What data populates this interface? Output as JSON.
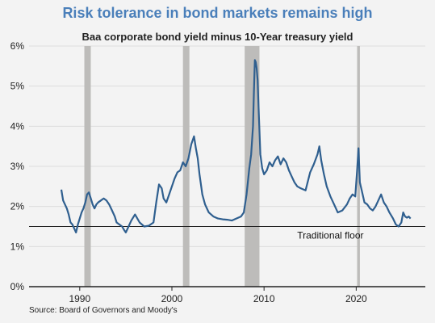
{
  "chart_data": {
    "type": "line",
    "title": "Risk tolerance in bond markets remains high",
    "subtitle": "Baa corporate bond yield minus 10-Year treasury yield",
    "source": "Source: Board of Governors and Moody's",
    "xlim": [
      1984.5,
      2027.5
    ],
    "ylim": [
      0,
      6
    ],
    "x_ticks": [
      1990,
      2000,
      2010,
      2020
    ],
    "x_tick_labels": [
      "1990",
      "2000",
      "2010",
      "2020"
    ],
    "y_ticks": [
      0,
      1,
      2,
      3,
      4,
      5,
      6
    ],
    "y_tick_labels": [
      "0%",
      "1%",
      "2%",
      "3%",
      "4%",
      "5%",
      "6%"
    ],
    "grid": "horizontal",
    "recessions": [
      {
        "start": 1990.5,
        "end": 1991.2
      },
      {
        "start": 2001.2,
        "end": 2001.9
      },
      {
        "start": 2007.9,
        "end": 2009.5
      },
      {
        "start": 2020.1,
        "end": 2020.4
      }
    ],
    "reference_line": {
      "y": 1.5,
      "label": "Traditional floor"
    },
    "colors": {
      "line": "#2f5f8f",
      "recession": "#bdbcba",
      "title": "#4a7fba",
      "reference": "#222222"
    },
    "series": [
      {
        "x": [
          1988.0,
          1988.2,
          1988.4,
          1988.6,
          1988.8,
          1989.0,
          1989.2,
          1989.4,
          1989.6,
          1989.8,
          1990.0,
          1990.2,
          1990.4,
          1990.6,
          1990.8,
          1991.0,
          1991.2,
          1991.4,
          1991.6,
          1991.8,
          1992.0,
          1992.3,
          1992.6,
          1992.9,
          1993.2,
          1993.5,
          1993.8,
          1994.0,
          1994.3,
          1994.6,
          1994.8,
          1995.0,
          1995.3,
          1995.6,
          1996.0,
          1996.5,
          1997.0,
          1997.5,
          1998.0,
          1998.3,
          1998.6,
          1998.9,
          1999.1,
          1999.4,
          1999.7,
          2000.0,
          2000.3,
          2000.6,
          2000.9,
          2001.2,
          2001.5,
          2001.8,
          2002.1,
          2002.4,
          2002.6,
          2002.8,
          2003.0,
          2003.3,
          2003.6,
          2004.0,
          2004.5,
          2005.0,
          2005.5,
          2006.0,
          2006.5,
          2007.0,
          2007.5,
          2007.8,
          2008.1,
          2008.4,
          2008.6,
          2008.8,
          2008.9,
          2009.0,
          2009.1,
          2009.2,
          2009.3,
          2009.45,
          2009.6,
          2009.8,
          2010.0,
          2010.3,
          2010.6,
          2010.9,
          2011.2,
          2011.5,
          2011.8,
          2012.1,
          2012.4,
          2012.7,
          2013.0,
          2013.3,
          2013.6,
          2014.0,
          2014.5,
          2015.0,
          2015.4,
          2015.8,
          2016.0,
          2016.2,
          2016.5,
          2016.8,
          2017.2,
          2017.6,
          2018.0,
          2018.5,
          2019.0,
          2019.3,
          2019.6,
          2019.9,
          2020.1,
          2020.25,
          2020.4,
          2020.6,
          2020.9,
          2021.2,
          2021.5,
          2021.8,
          2022.1,
          2022.4,
          2022.7,
          2023.0,
          2023.3,
          2023.6,
          2024.0,
          2024.3,
          2024.6,
          2024.9,
          2025.1,
          2025.3,
          2025.5,
          2025.7,
          2025.9
        ],
        "values": [
          2.42,
          2.15,
          2.05,
          1.95,
          1.8,
          1.6,
          1.55,
          1.45,
          1.35,
          1.55,
          1.7,
          1.85,
          1.95,
          2.1,
          2.3,
          2.35,
          2.2,
          2.05,
          1.95,
          2.05,
          2.1,
          2.15,
          2.2,
          2.15,
          2.05,
          1.9,
          1.75,
          1.6,
          1.55,
          1.5,
          1.42,
          1.35,
          1.5,
          1.65,
          1.8,
          1.6,
          1.5,
          1.52,
          1.6,
          2.1,
          2.55,
          2.45,
          2.2,
          2.1,
          2.3,
          2.5,
          2.7,
          2.85,
          2.9,
          3.1,
          3.0,
          3.2,
          3.55,
          3.75,
          3.45,
          3.2,
          2.8,
          2.3,
          2.05,
          1.85,
          1.75,
          1.7,
          1.68,
          1.67,
          1.65,
          1.7,
          1.75,
          1.85,
          2.3,
          2.95,
          3.3,
          4.0,
          4.85,
          5.65,
          5.6,
          5.45,
          5.15,
          4.2,
          3.3,
          2.95,
          2.8,
          2.9,
          3.1,
          3.0,
          3.15,
          3.25,
          3.05,
          3.2,
          3.1,
          2.9,
          2.75,
          2.6,
          2.5,
          2.45,
          2.4,
          2.85,
          3.05,
          3.3,
          3.5,
          3.15,
          2.8,
          2.5,
          2.25,
          2.05,
          1.85,
          1.9,
          2.05,
          2.2,
          2.3,
          2.25,
          2.9,
          3.45,
          2.6,
          2.4,
          2.1,
          2.05,
          1.95,
          1.9,
          2.0,
          2.15,
          2.3,
          2.1,
          2.0,
          1.85,
          1.7,
          1.55,
          1.5,
          1.6,
          1.85,
          1.75,
          1.72,
          1.75,
          1.7
        ]
      }
    ]
  }
}
